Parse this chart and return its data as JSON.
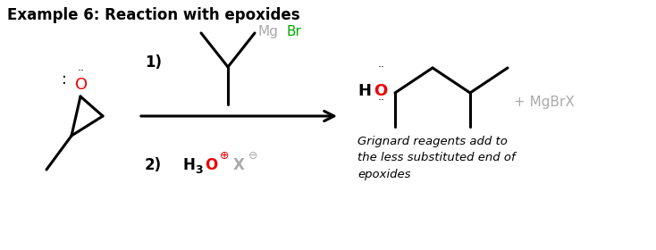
{
  "title": "Example 6: Reaction with epoxides",
  "title_fontsize": 12,
  "background_color": "#ffffff",
  "text_color": "#000000",
  "gray_color": "#aaaaaa",
  "red_color": "#ee0000",
  "green_color": "#00aa00",
  "italic_note": "Grignard reagents add to\nthe less substituted end of\nepoxides",
  "xlim": [
    0,
    7.34
  ],
  "ylim": [
    0,
    2.8
  ]
}
